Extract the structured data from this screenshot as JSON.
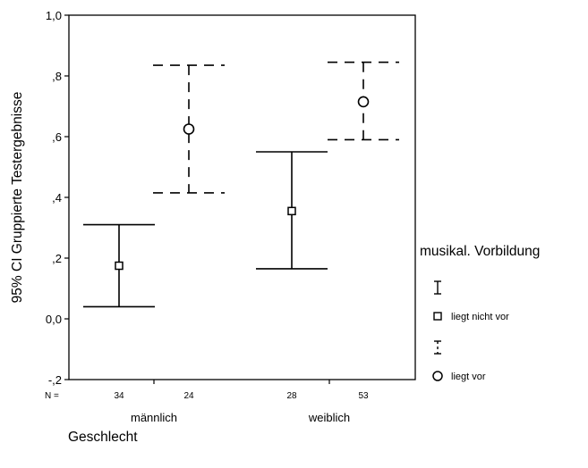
{
  "chart_data": {
    "type": "errorbar",
    "ylabel": "95% CI Gruppierte Testergebnisse",
    "xlabel": "Geschlecht",
    "ylim": [
      -0.2,
      1.0
    ],
    "yticks": [
      -0.2,
      0.0,
      0.2,
      0.4,
      0.6,
      0.8,
      1.0
    ],
    "ytick_labels": [
      "-,2",
      "0,0",
      ",2",
      ",4",
      ",6",
      ",8",
      "1,0"
    ],
    "categories": [
      "männlich",
      "weiblich"
    ],
    "n_prefix": "N =",
    "legend": {
      "title": "musikal. Vorbildung",
      "position": "right"
    },
    "series": [
      {
        "name": "liegt nicht vor",
        "line_style": "solid",
        "marker": "square",
        "points": [
          {
            "category": "männlich",
            "n": "34",
            "mean": 0.175,
            "lower": 0.04,
            "upper": 0.31
          },
          {
            "category": "weiblich",
            "n": "28",
            "mean": 0.355,
            "lower": 0.165,
            "upper": 0.55
          }
        ]
      },
      {
        "name": "liegt vor",
        "line_style": "dashed",
        "marker": "circle",
        "points": [
          {
            "category": "männlich",
            "n": "24",
            "mean": 0.625,
            "lower": 0.415,
            "upper": 0.835
          },
          {
            "category": "weiblich",
            "n": "53",
            "mean": 0.715,
            "lower": 0.59,
            "upper": 0.845
          }
        ]
      }
    ]
  }
}
